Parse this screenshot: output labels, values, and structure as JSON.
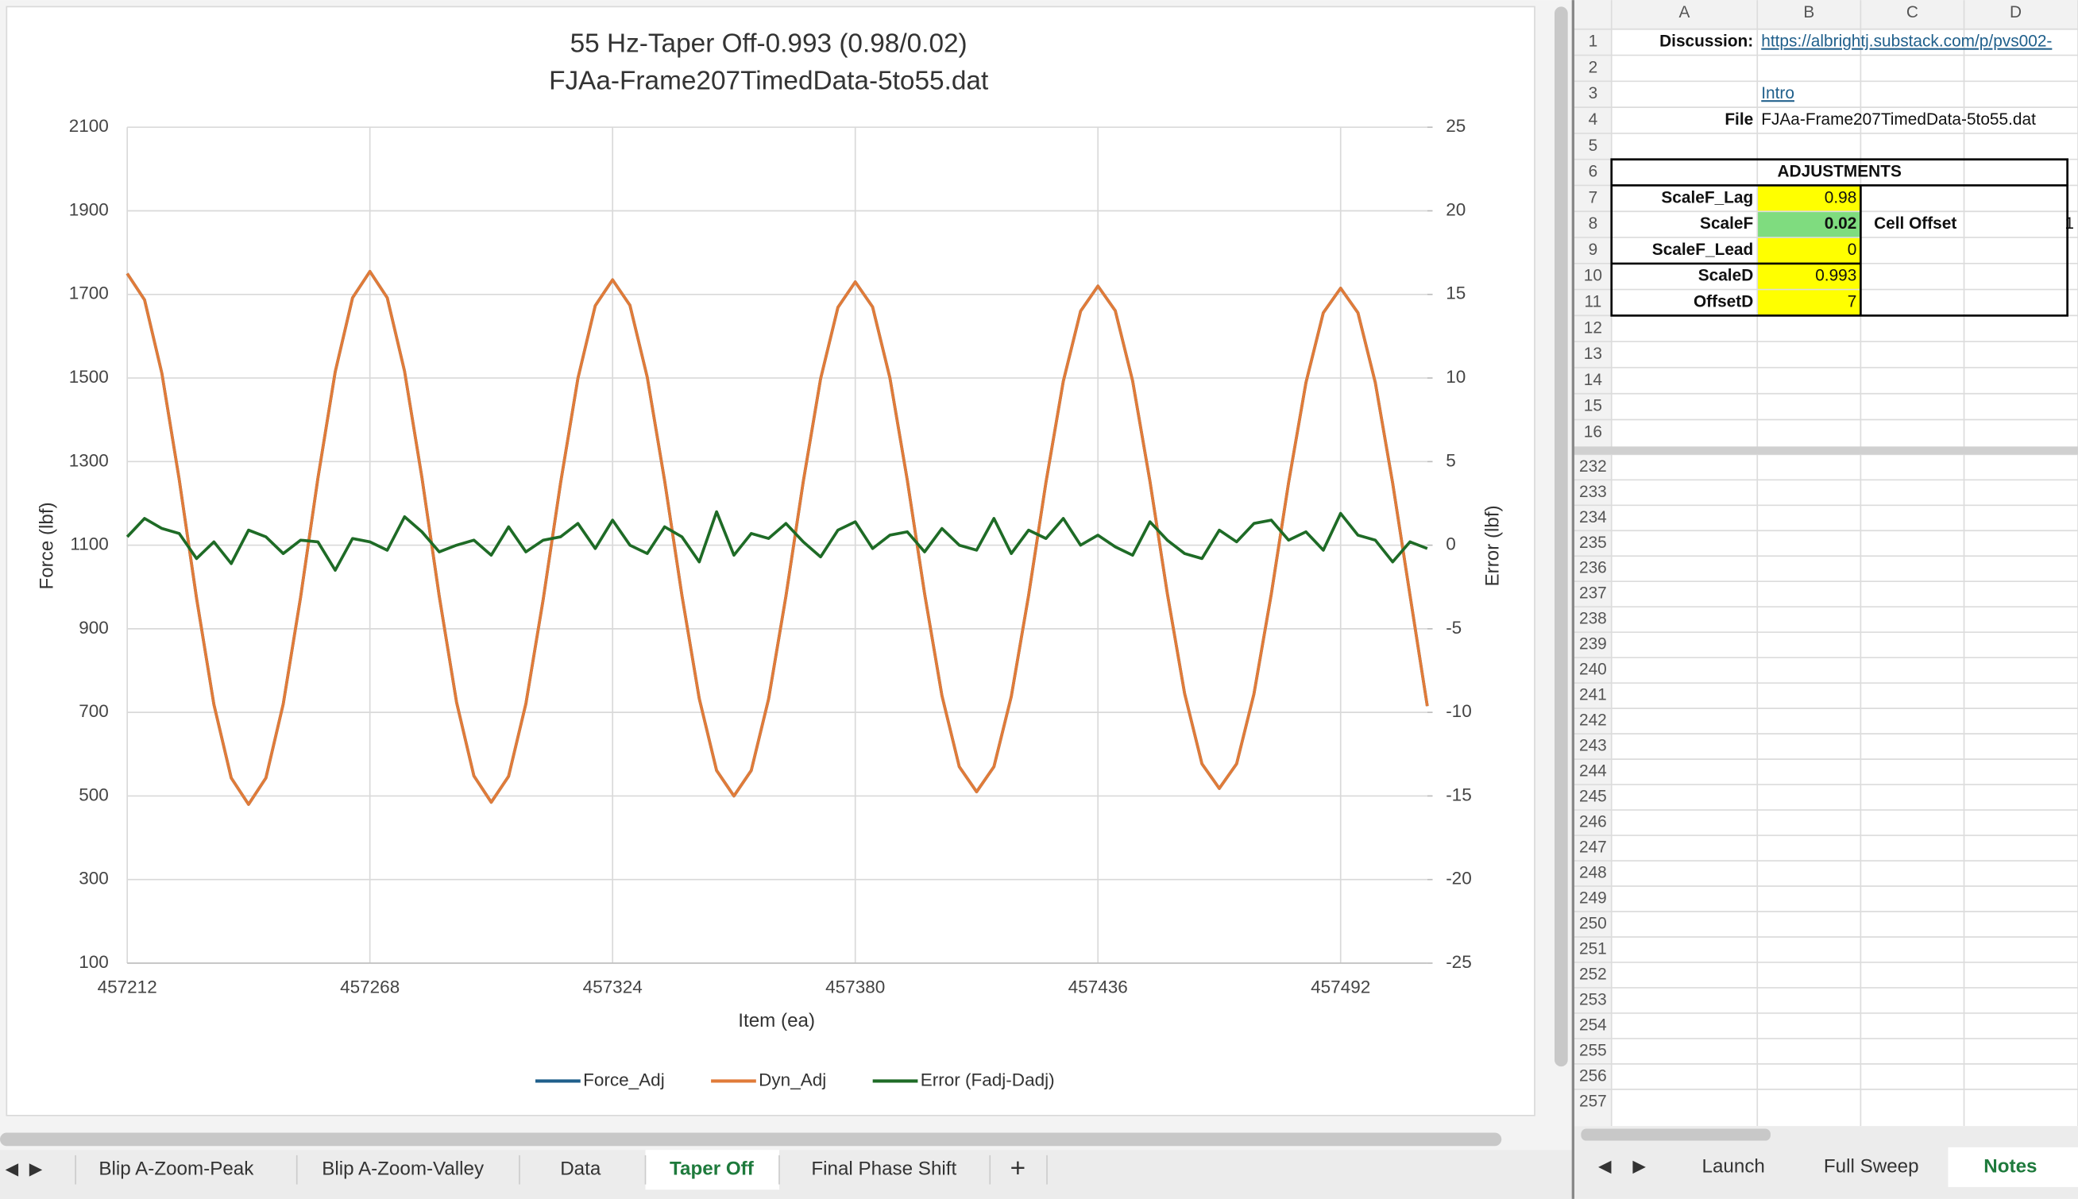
{
  "chart_data": {
    "type": "line",
    "title": "55 Hz-Taper Off-0.993 (0.98/0.02)",
    "subtitle": "FJAa-Frame207TimedData-5to55.dat",
    "x_label": "Item (ea)",
    "y_label": "Force (lbf)",
    "y2_label": "Error (lbf)",
    "grid": true,
    "legend": "bottom",
    "xlim": [
      457212,
      457512
    ],
    "xticks": [
      457212,
      457268,
      457324,
      457380,
      457436,
      457492
    ],
    "ylim": [
      100,
      2100
    ],
    "yticks": [
      100,
      300,
      500,
      700,
      900,
      1100,
      1300,
      1500,
      1700,
      1900,
      2100
    ],
    "y2lim": [
      -25,
      25
    ],
    "y2ticks": [
      -25,
      -20,
      -15,
      -10,
      -5,
      0,
      5,
      10,
      15,
      20,
      25
    ],
    "x": [
      457212,
      457216,
      457220,
      457224,
      457228,
      457232,
      457236,
      457240,
      457244,
      457248,
      457252,
      457256,
      457260,
      457264,
      457268,
      457272,
      457276,
      457280,
      457284,
      457288,
      457292,
      457296,
      457300,
      457304,
      457308,
      457312,
      457316,
      457320,
      457324,
      457328,
      457332,
      457336,
      457340,
      457344,
      457348,
      457352,
      457356,
      457360,
      457364,
      457368,
      457372,
      457376,
      457380,
      457384,
      457388,
      457392,
      457396,
      457400,
      457404,
      457408,
      457412,
      457416,
      457420,
      457424,
      457428,
      457432,
      457436,
      457440,
      457444,
      457448,
      457452,
      457456,
      457460,
      457464,
      457468,
      457472,
      457476,
      457480,
      457484,
      457488,
      457492,
      457496,
      457500,
      457504,
      457508,
      457512
    ],
    "series": [
      {
        "name": "Force_Adj",
        "color": "#1f5f8b",
        "values": [
          1750,
          1687,
          1511,
          1257,
          973,
          719,
          543,
          480,
          543,
          720,
          975,
          1260,
          1515,
          1692,
          1755,
          1692,
          1516,
          1262,
          978,
          724,
          548,
          485,
          547,
          721,
          971,
          1249,
          1499,
          1673,
          1735,
          1674,
          1502,
          1255,
          980,
          733,
          561,
          500,
          561,
          732,
          978,
          1252,
          1498,
          1669,
          1730,
          1670,
          1500,
          1256,
          984,
          740,
          570,
          510,
          570,
          738,
          980,
          1250,
          1492,
          1660,
          1720,
          1661,
          1493,
          1253,
          985,
          745,
          577,
          518,
          577,
          744,
          983,
          1250,
          1489,
          1656,
          1715,
          1656,
          1489,
          1249,
          981,
          715
        ]
      },
      {
        "name": "Dyn_Adj",
        "color": "#e07b39",
        "values": [
          1750,
          1687,
          1511,
          1257,
          973,
          719,
          543,
          480,
          543,
          720,
          975,
          1260,
          1515,
          1692,
          1755,
          1692,
          1516,
          1262,
          978,
          724,
          548,
          485,
          547,
          721,
          971,
          1249,
          1499,
          1673,
          1735,
          1674,
          1502,
          1255,
          980,
          733,
          561,
          500,
          561,
          732,
          978,
          1252,
          1498,
          1669,
          1730,
          1670,
          1500,
          1256,
          984,
          740,
          570,
          510,
          570,
          738,
          980,
          1250,
          1492,
          1660,
          1720,
          1661,
          1493,
          1253,
          985,
          745,
          577,
          518,
          577,
          744,
          983,
          1250,
          1489,
          1656,
          1715,
          1656,
          1489,
          1249,
          981,
          715
        ]
      },
      {
        "name": "Error (Fadj-Dadj)",
        "color": "#1e6b26",
        "axis": "y2",
        "values": [
          0.5,
          1.6,
          1.0,
          0.7,
          -0.8,
          0.2,
          -1.1,
          0.9,
          0.5,
          -0.5,
          0.3,
          0.2,
          -1.5,
          0.4,
          0.2,
          -0.3,
          1.7,
          0.8,
          -0.4,
          0.0,
          0.3,
          -0.6,
          1.1,
          -0.4,
          0.3,
          0.5,
          1.3,
          -0.2,
          1.5,
          0.0,
          -0.5,
          1.1,
          0.5,
          -1.0,
          2.0,
          -0.6,
          0.7,
          0.4,
          1.3,
          0.2,
          -0.7,
          0.9,
          1.4,
          -0.2,
          0.6,
          0.8,
          -0.4,
          1.0,
          0.0,
          -0.3,
          1.6,
          -0.5,
          0.9,
          0.4,
          1.6,
          0.0,
          0.6,
          -0.1,
          -0.6,
          1.4,
          0.3,
          -0.5,
          -0.8,
          0.9,
          0.2,
          1.3,
          1.5,
          0.3,
          0.8,
          -0.3,
          1.9,
          0.6,
          0.3,
          -1.0,
          0.2,
          -0.2
        ]
      }
    ]
  },
  "sheet": {
    "col_headers": [
      "A",
      "B",
      "C",
      "D"
    ],
    "row_numbers": [
      1,
      2,
      3,
      4,
      5,
      6,
      7,
      8,
      9,
      10,
      11,
      12,
      13,
      14,
      15,
      16,
      232,
      233,
      234,
      235,
      236,
      237,
      238,
      239,
      240,
      241,
      242,
      243,
      244,
      245,
      246,
      247,
      248,
      249,
      250,
      251,
      252,
      253,
      254,
      255,
      256,
      257
    ],
    "cells": {
      "A1": "Discussion:",
      "B1": "https://albrightj.substack.com/p/pvs002-",
      "B3": "Intro",
      "A4": "File",
      "B4": "FJAa-Frame207TimedData-5to55.dat",
      "A6": "ADJUSTMENTS",
      "A7": "ScaleF_Lag",
      "B7": 0.98,
      "A8": "ScaleF",
      "B8": 0.02,
      "C8": "Cell Offset",
      "D8": 1,
      "A9": "ScaleF_Lead",
      "B9": 0,
      "A10": "ScaleD",
      "B10": 0.993,
      "A11": "OffsetD",
      "B11": 7
    }
  },
  "tabs": {
    "left": [
      "Blip A-Zoom-Peak",
      "Blip A-Zoom-Valley",
      "Data",
      "Taper Off",
      "Final Phase Shift"
    ],
    "right": [
      "Launch",
      "Full Sweep",
      "Notes"
    ]
  }
}
